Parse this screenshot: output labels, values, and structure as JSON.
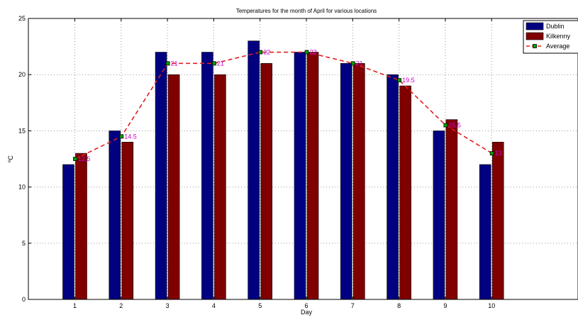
{
  "chart_data": {
    "type": "bar",
    "title": "Temperatures for the month of April for various locations",
    "xlabel": "Day",
    "ylabel": "ºC",
    "categories": [
      "1",
      "2",
      "3",
      "4",
      "5",
      "6",
      "7",
      "8",
      "9",
      "10"
    ],
    "ylim": [
      0,
      25
    ],
    "yticks": [
      "0",
      "5",
      "10",
      "15",
      "20",
      "25"
    ],
    "grid": true,
    "legend_position": "top-right",
    "series": [
      {
        "name": "Dublin",
        "type": "bar",
        "color": "#000080",
        "values": [
          12,
          15,
          22,
          22,
          23,
          22,
          21,
          20,
          15,
          12
        ]
      },
      {
        "name": "Kilkenny",
        "type": "bar",
        "color": "#800000",
        "values": [
          13,
          14,
          20,
          20,
          21,
          22,
          21,
          19,
          16,
          14
        ]
      },
      {
        "name": "Average",
        "type": "line",
        "color": "#e02020",
        "marker_color": "#00a000",
        "label_color": "#cc00cc",
        "values": [
          12.5,
          14.5,
          21,
          21,
          22,
          22,
          21,
          19.5,
          15.5,
          13
        ],
        "labels": [
          "12.5",
          "14.5",
          "21",
          "21",
          "22",
          "22",
          "21",
          "19.5",
          "15.5",
          "13"
        ]
      }
    ]
  }
}
